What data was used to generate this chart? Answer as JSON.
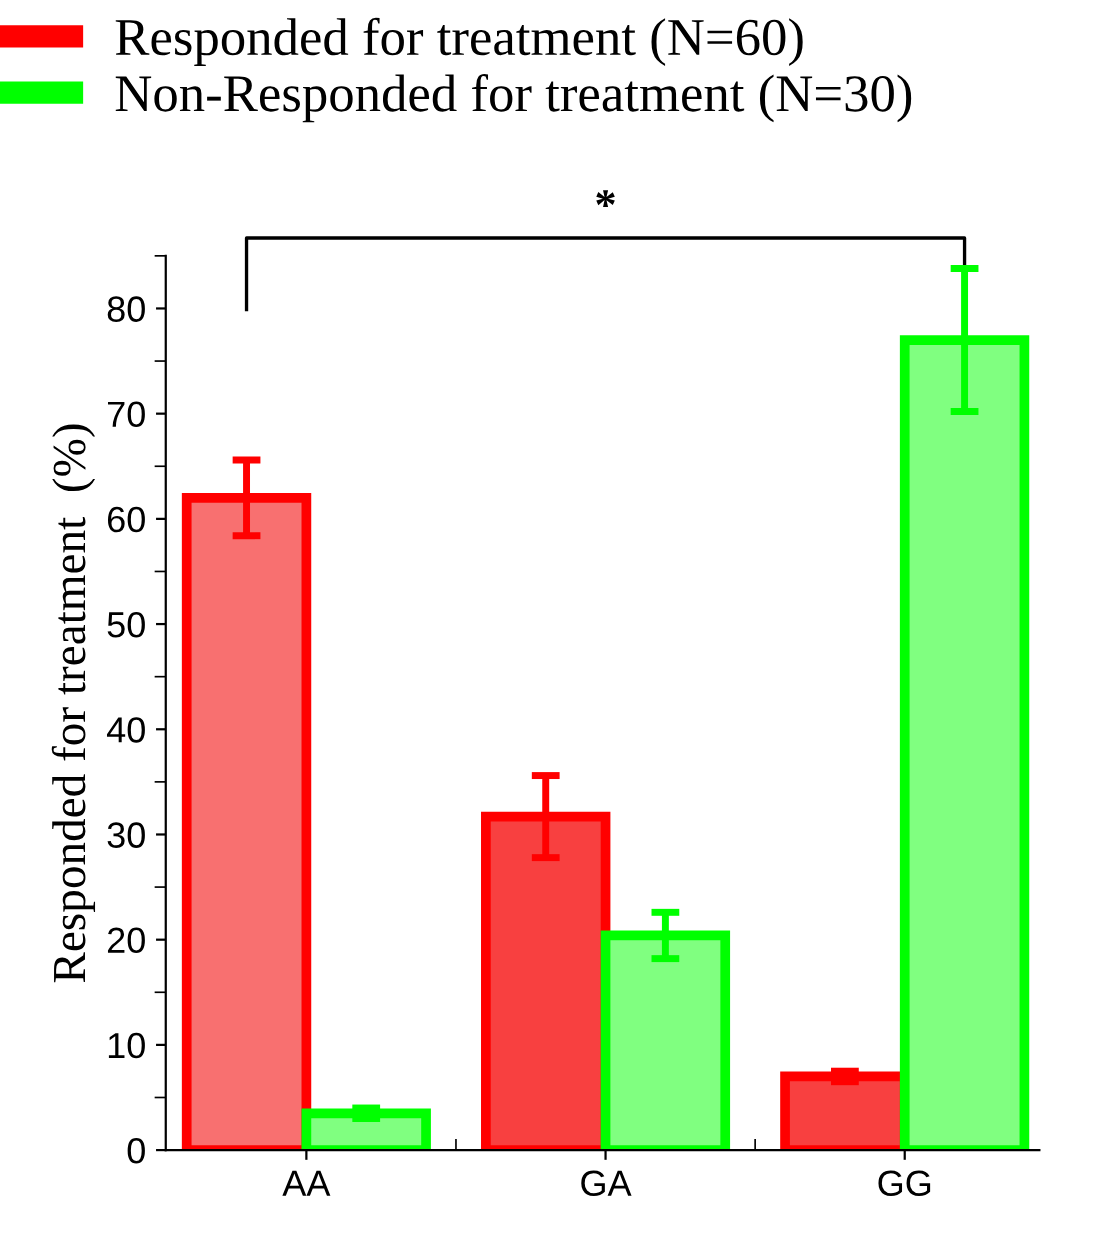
{
  "chart_data": {
    "type": "bar",
    "ylabel": "Responded for treatment  (%)",
    "categories": [
      "AA",
      "GA",
      "GG"
    ],
    "series": [
      {
        "name": "Responded for treatment (N=60)",
        "color": "#ff0000",
        "colors": [
          "#f87070",
          "#f84040",
          "#f84040"
        ],
        "values": [
          62,
          31.7,
          7
        ],
        "errors": [
          3.6,
          3.9,
          0.5
        ]
      },
      {
        "name": "Non-Responded for treatment (N=30)",
        "color": "#00ff00",
        "colors": [
          "#80ff80",
          "#80ff80",
          "#80ff80"
        ],
        "values": [
          3.5,
          20.4,
          77
        ],
        "errors": [
          0.5,
          2.2,
          6.8
        ]
      }
    ],
    "ylim": [
      0,
      85
    ],
    "yticks": [
      0,
      10,
      20,
      30,
      40,
      50,
      60,
      70,
      80
    ],
    "annotations": [
      "*"
    ],
    "legend": "top",
    "grid": false
  }
}
